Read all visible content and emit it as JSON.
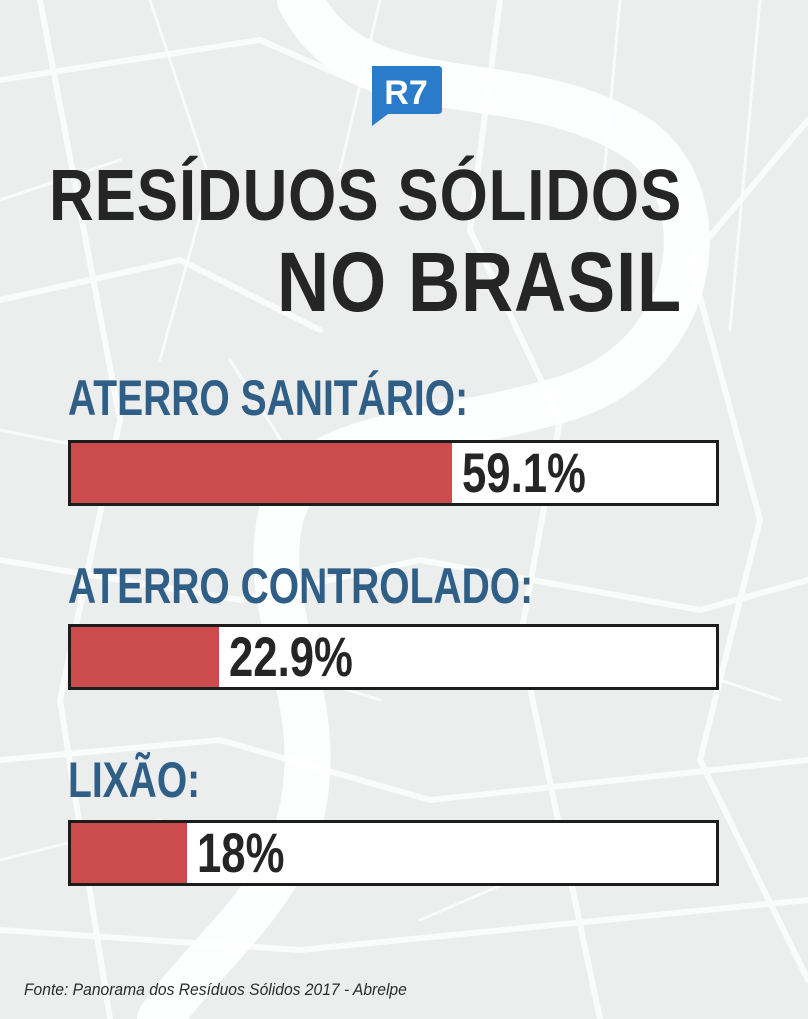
{
  "logo": {
    "text": "R7",
    "color": "#2a7bc9"
  },
  "title": {
    "line1": "Resíduos Sólidos",
    "line2": "no Brasil"
  },
  "source": "Fonte: Panorama dos Resíduos Sólidos 2017 - Abrelpe",
  "colors": {
    "bar": "#cc4c4e",
    "label": "#2f5f86",
    "text": "#252525",
    "background": "#eceded"
  },
  "chart_data": {
    "type": "bar",
    "orientation": "horizontal",
    "title": "Resíduos Sólidos no Brasil",
    "categories": [
      "Aterro sanitário:",
      "Aterro controlado:",
      "Lixão:"
    ],
    "values": [
      59.1,
      22.9,
      18
    ],
    "value_labels": [
      "59.1%",
      "22.9%",
      "18%"
    ],
    "xlim": [
      0,
      100
    ],
    "unit": "%"
  }
}
